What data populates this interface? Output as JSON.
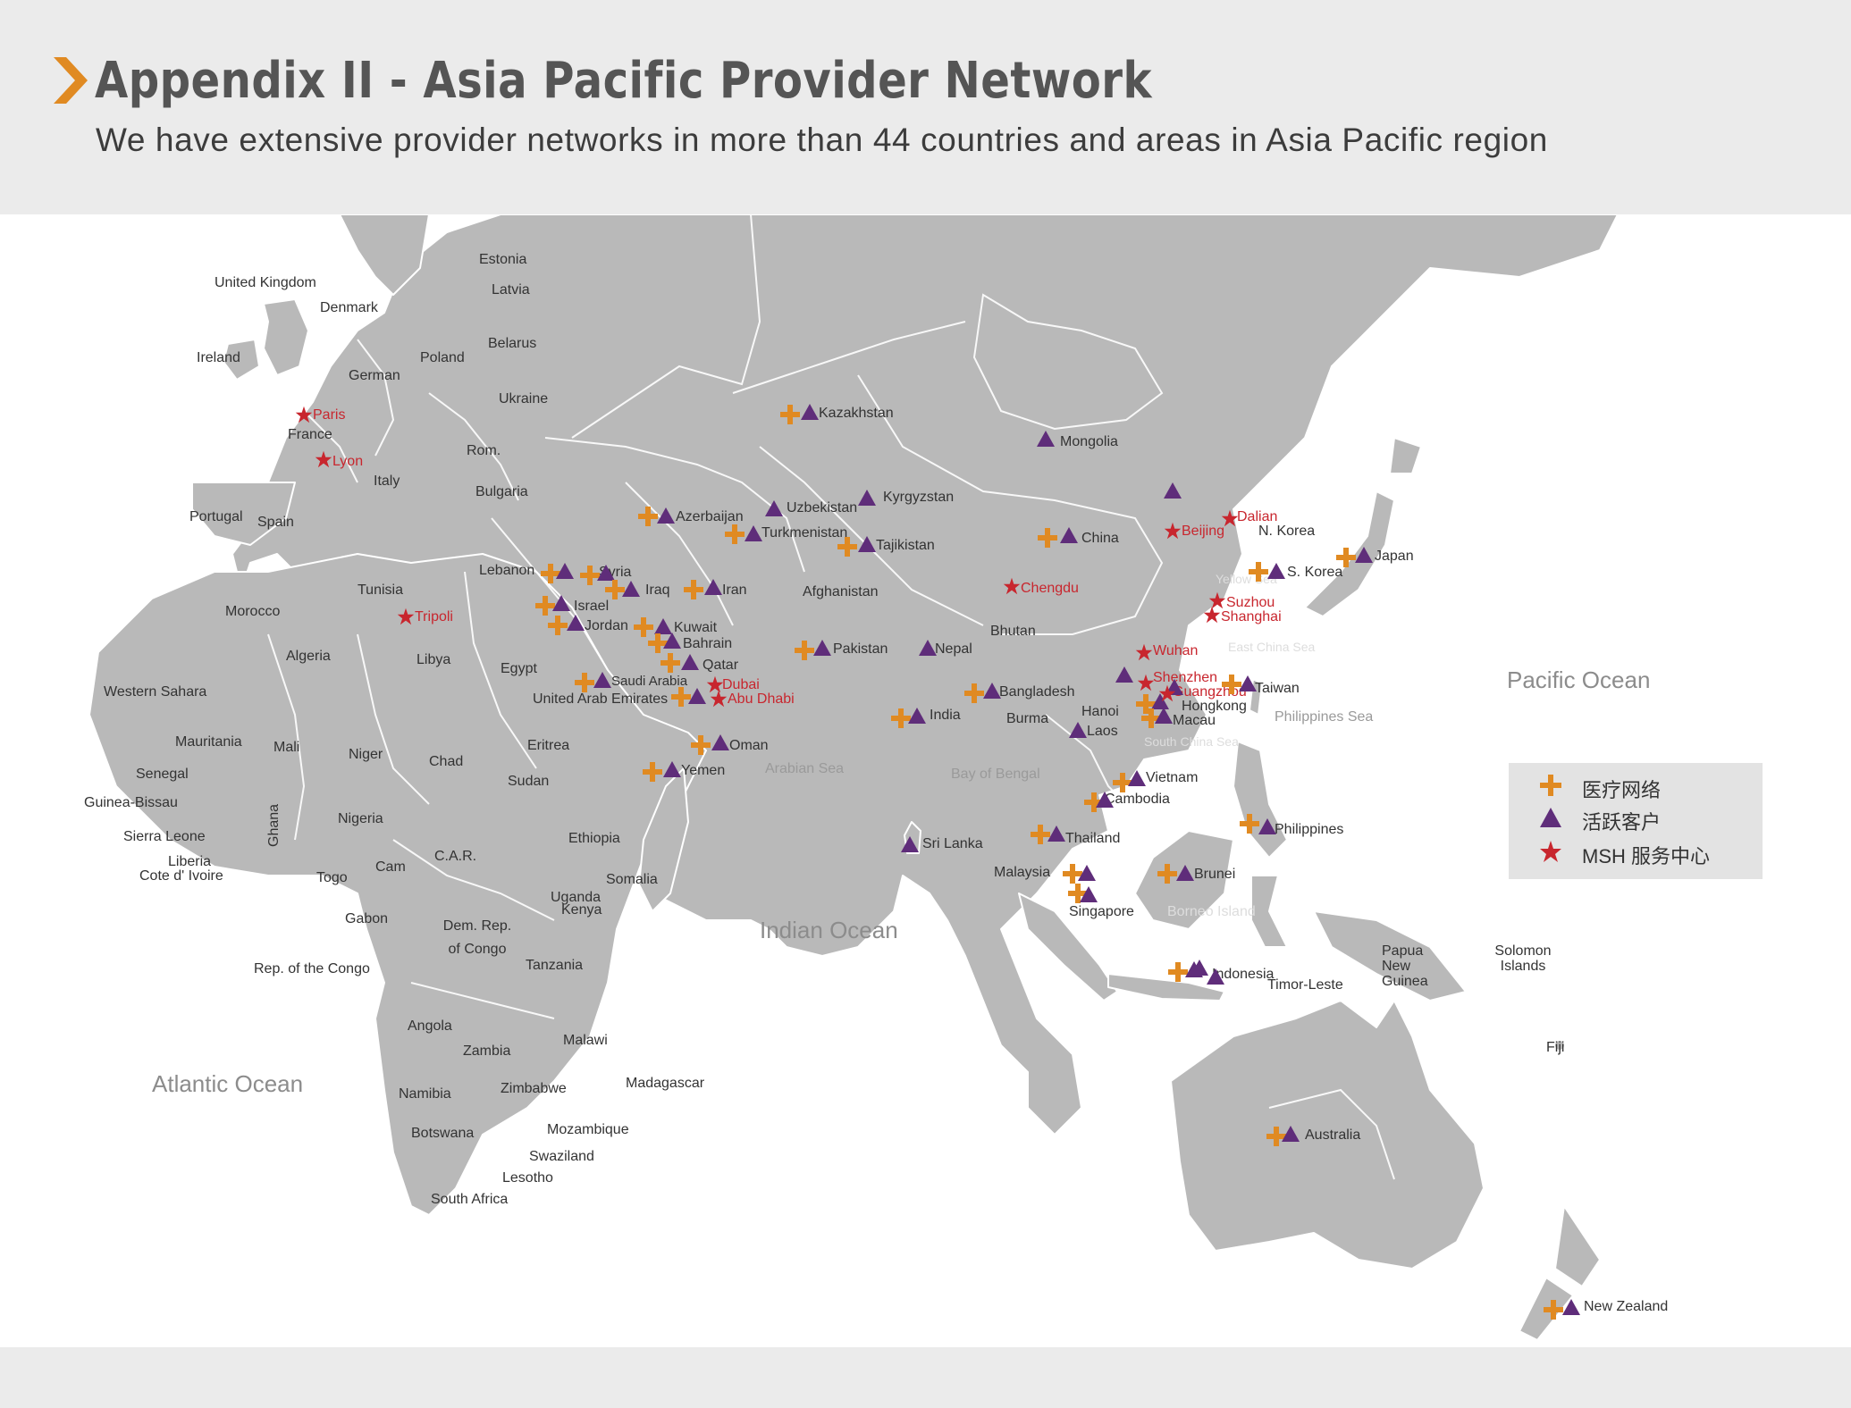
{
  "header": {
    "title": "Appendix II - Asia Pacific Provider Network",
    "subtitle": "We have extensive provider networks in more than 44 countries and areas in Asia Pacific region"
  },
  "colors": {
    "provider": "#e08a22",
    "client": "#5f2d7a",
    "msh_center": "#c8262e",
    "land": "#b9b9b9",
    "header_bg": "#ebebeb"
  },
  "legend": {
    "items": [
      {
        "symbol": "cross-icon",
        "label": "医疗网络"
      },
      {
        "symbol": "triangle-icon",
        "label": "活跃客户"
      },
      {
        "symbol": "star-icon",
        "label": "MSH 服务中心"
      }
    ]
  },
  "oceans": [
    "Pacific Ocean",
    "Indian Ocean",
    "Atlantic Ocean"
  ],
  "seas": [
    "Yellow Sea",
    "East China Sea",
    "Philippines Sea",
    "South China Sea",
    "Bay of Bengal",
    "Arabian Sea",
    "Borneo Island"
  ],
  "countries": [
    "United Kingdom",
    "Ireland",
    "Denmark",
    "Estonia",
    "Latvia",
    "Belarus",
    "Poland",
    "German",
    "Ukraine",
    "France",
    "Rom.",
    "Italy",
    "Bulgaria",
    "Portugal",
    "Spain",
    "Tunisia",
    "Morocco",
    "Algeria",
    "Libya",
    "Egypt",
    "Western Sahara",
    "Mauritania",
    "Mali",
    "Niger",
    "Chad",
    "Senegal",
    "Guinea-Bissau",
    "Sierra Leone",
    "Liberia",
    "Cote d' Ivoire",
    "Ghana",
    "Togo",
    "Nigeria",
    "Cam",
    "C.A.R.",
    "Sudan",
    "Eritrea",
    "Ethiopia",
    "Somalia",
    "Uganda",
    "Kenya",
    "Gabon",
    "Dem. Rep. of Congo",
    "Rep. of the Congo",
    "Tanzania",
    "Angola",
    "Zambia",
    "Malawi",
    "Namibia",
    "Zimbabwe",
    "Botswana",
    "Mozambique",
    "Madagascar",
    "Swaziland",
    "Lesotho",
    "South Africa",
    "Kazakhstan",
    "Mongolia",
    "Kyrgyzstan",
    "Uzbekistan",
    "Azerbaijan",
    "Turkmenistan",
    "Tajikistan",
    "China",
    "N. Korea",
    "S. Korea",
    "Japan",
    "Lebanon",
    "Syria",
    "Iraq",
    "Iran",
    "Israel",
    "Jordan",
    "Afghanistan",
    "Kuwait",
    "Bahrain",
    "Pakistan",
    "Nepal",
    "Bhutan",
    "Qatar",
    "Saudi Arabia",
    "United Arab Emirates",
    "Oman",
    "Yemen",
    "India",
    "Bangladesh",
    "Burma",
    "Hanoi",
    "Laos",
    "Macau",
    "Hongkong",
    "Taiwan",
    "Vietnam",
    "Cambodia",
    "Thailand",
    "Sri Lanka",
    "Philippines",
    "Malaysia",
    "Singapore",
    "Brunei",
    "Indonesia",
    "Timor-Leste",
    "Papua New Guinea",
    "Solomon Islands",
    "Fiji",
    "Australia",
    "New Zealand"
  ],
  "cities": [
    "Paris",
    "Lyon",
    "Tripoli",
    "Beijing",
    "Dalian",
    "Chengdu",
    "Suzhou",
    "Shanghai",
    "Wuhan",
    "Shenzhen",
    "Guangzhou",
    "Dubai",
    "Abu Dhabi"
  ]
}
